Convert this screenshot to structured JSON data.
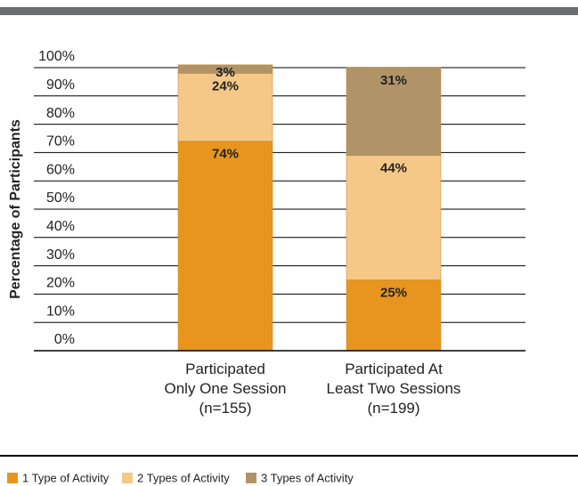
{
  "chart_data": {
    "type": "stacked_bar",
    "ylabel": "Percentage of Participants",
    "categories": [
      "Participated\nOnly One Session\n(n=155)",
      "Participated At\nLeast Two Sessions\n(n=199)"
    ],
    "series": [
      {
        "name": "1 Type of Activity",
        "color": "#e8951f",
        "values": [
          74,
          25
        ],
        "value_labels": [
          "74%",
          "25%"
        ]
      },
      {
        "name": "2 Types of Activity",
        "color": "#f5c887",
        "values": [
          24,
          44
        ],
        "value_labels": [
          "24%",
          "44%"
        ]
      },
      {
        "name": "3 Types of Activity",
        "color": "#b09467",
        "values": [
          3,
          31
        ],
        "value_labels": [
          "3%",
          "31%"
        ]
      }
    ],
    "ylim": [
      0,
      100
    ],
    "yticks": [
      {
        "value": 0,
        "label": "0%"
      },
      {
        "value": 10,
        "label": "10%"
      },
      {
        "value": 20,
        "label": "20%"
      },
      {
        "value": 30,
        "label": "30%"
      },
      {
        "value": 40,
        "label": "40%"
      },
      {
        "value": 50,
        "label": "50%"
      },
      {
        "value": 60,
        "label": "60%"
      },
      {
        "value": 70,
        "label": "70%"
      },
      {
        "value": 80,
        "label": "80%"
      },
      {
        "value": 90,
        "label": "90%"
      },
      {
        "value": 100,
        "label": "100%"
      }
    ],
    "grid": true,
    "legend": "bottom"
  }
}
